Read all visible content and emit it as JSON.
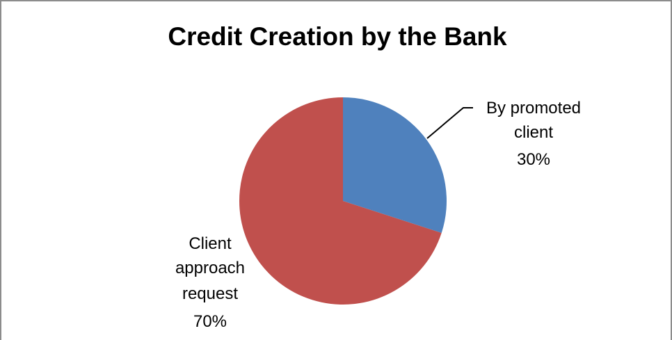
{
  "chart_data": {
    "type": "pie",
    "title": "Credit Creation by the Bank",
    "slices": [
      {
        "label_lines": [
          "By promoted",
          "client"
        ],
        "value": 30,
        "percent_label": "30%",
        "color": "#4f81bd"
      },
      {
        "label_lines": [
          "Client",
          "approach",
          "request"
        ],
        "value": 70,
        "percent_label": "70%",
        "color": "#c0504d"
      }
    ],
    "legend": "none",
    "start_angle": "12 o'clock, clockwise"
  }
}
